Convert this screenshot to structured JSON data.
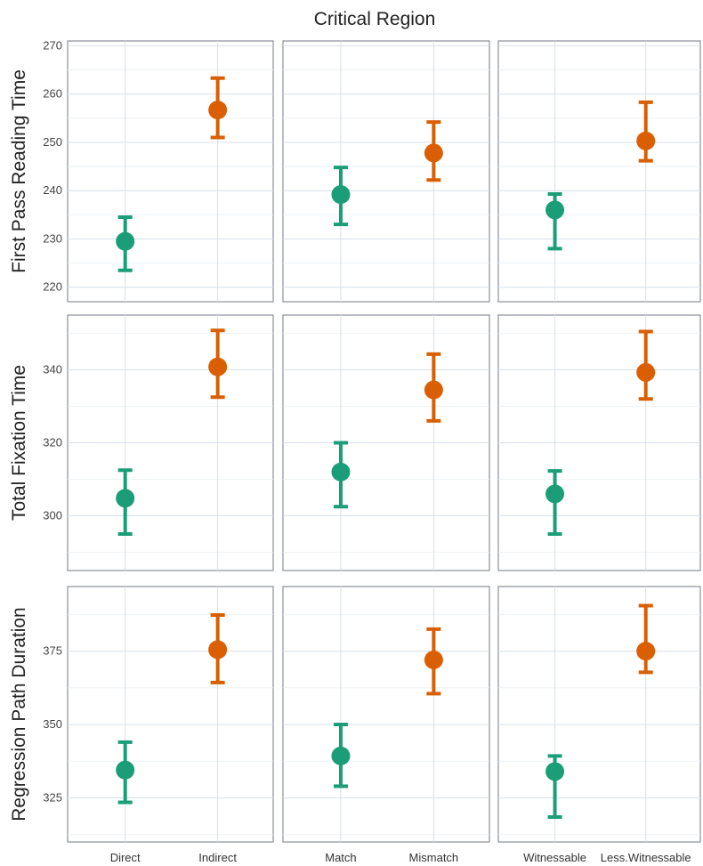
{
  "chart_data": {
    "type": "scatter",
    "title": "Critical Region",
    "colors": {
      "first": "#1b9e77",
      "second": "#d95f02"
    },
    "grid": true,
    "columns": [
      {
        "categories": [
          "Direct",
          "Indirect"
        ]
      },
      {
        "categories": [
          "Match",
          "Mismatch"
        ]
      },
      {
        "categories": [
          "Witnessable",
          "Less.Witnessable"
        ]
      }
    ],
    "rows": [
      {
        "ylabel": "First Pass Reading Time",
        "ylim": [
          217,
          271
        ],
        "yticks": [
          220,
          230,
          240,
          250,
          260,
          270
        ],
        "panels": [
          {
            "points": [
              {
                "y": 229.5,
                "lo": 223.5,
                "hi": 234.5
              },
              {
                "y": 256.7,
                "lo": 251.0,
                "hi": 263.3
              }
            ]
          },
          {
            "points": [
              {
                "y": 239.2,
                "lo": 233.0,
                "hi": 244.8
              },
              {
                "y": 247.8,
                "lo": 242.2,
                "hi": 254.2
              }
            ]
          },
          {
            "points": [
              {
                "y": 236.0,
                "lo": 228.0,
                "hi": 239.3
              },
              {
                "y": 250.3,
                "lo": 246.2,
                "hi": 258.3
              }
            ]
          }
        ]
      },
      {
        "ylabel": "Total Fixation Time",
        "ylim": [
          285,
          355
        ],
        "yticks": [
          300,
          320,
          340
        ],
        "panels": [
          {
            "points": [
              {
                "y": 304.8,
                "lo": 295.0,
                "hi": 312.5
              },
              {
                "y": 340.8,
                "lo": 332.5,
                "hi": 350.8
              }
            ]
          },
          {
            "points": [
              {
                "y": 312.0,
                "lo": 302.5,
                "hi": 320.0
              },
              {
                "y": 334.5,
                "lo": 326.0,
                "hi": 344.3
              }
            ]
          },
          {
            "points": [
              {
                "y": 306.0,
                "lo": 295.0,
                "hi": 312.3
              },
              {
                "y": 339.3,
                "lo": 332.0,
                "hi": 350.5
              }
            ]
          }
        ]
      },
      {
        "ylabel": "Regression Path Duration",
        "ylim": [
          310,
          397
        ],
        "yticks": [
          325,
          350,
          375
        ],
        "panels": [
          {
            "points": [
              {
                "y": 334.5,
                "lo": 323.5,
                "hi": 344.0
              },
              {
                "y": 375.5,
                "lo": 364.3,
                "hi": 387.3
              }
            ]
          },
          {
            "points": [
              {
                "y": 339.3,
                "lo": 329.0,
                "hi": 350.0
              },
              {
                "y": 372.0,
                "lo": 360.5,
                "hi": 382.5
              }
            ]
          },
          {
            "points": [
              {
                "y": 334.0,
                "lo": 318.5,
                "hi": 339.3
              },
              {
                "y": 375.0,
                "lo": 367.8,
                "hi": 390.5
              }
            ]
          }
        ]
      }
    ]
  }
}
